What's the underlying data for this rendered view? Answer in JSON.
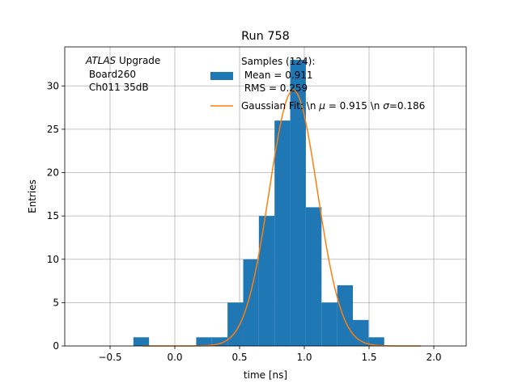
{
  "chart_data": {
    "type": "bar",
    "title": "Run 758",
    "xlabel": "time [ns]",
    "ylabel": "Entries",
    "xlim": [
      -0.85,
      2.25
    ],
    "ylim": [
      0,
      34.5
    ],
    "grid": true,
    "legend_placement": "top-center",
    "xticks": [
      -0.5,
      0.0,
      0.5,
      1.0,
      1.5,
      2.0
    ],
    "xtick_labels": [
      "−0.5",
      "0.0",
      "0.5",
      "1.0",
      "1.5",
      "2.0"
    ],
    "yticks": [
      0,
      5,
      10,
      15,
      20,
      25,
      30
    ],
    "yticks_labels": [
      "0",
      "5",
      "10",
      "15",
      "20",
      "25",
      "30"
    ],
    "bin_width": 0.121,
    "bins": [
      {
        "x0": -0.32,
        "count": 1
      },
      {
        "x0": 0.165,
        "count": 1
      },
      {
        "x0": 0.286,
        "count": 1
      },
      {
        "x0": 0.407,
        "count": 5
      },
      {
        "x0": 0.528,
        "count": 10
      },
      {
        "x0": 0.649,
        "count": 15
      },
      {
        "x0": 0.77,
        "count": 26
      },
      {
        "x0": 0.891,
        "count": 33
      },
      {
        "x0": 1.012,
        "count": 16
      },
      {
        "x0": 1.133,
        "count": 5
      },
      {
        "x0": 1.254,
        "count": 7
      },
      {
        "x0": 1.375,
        "count": 3
      },
      {
        "x0": 1.496,
        "count": 1
      }
    ],
    "fit": {
      "mu": 0.915,
      "sigma": 0.186,
      "amplitude": 29.5
    },
    "colors": {
      "bars": "#1f77b4",
      "fit": "#ff7f0e",
      "grid": "#b0b0b0"
    },
    "annotation": {
      "line1_italic": "ATLAS",
      "line1_rest": " Upgrade",
      "line2": " Board260",
      "line3": " Ch011 35dB"
    },
    "legend": {
      "samples_line1": "Samples (124):",
      "samples_line2": " Mean = 0.911",
      "samples_line3": " RMS = 0.259",
      "fit_label_pre": "Gaussian Fit: \\n ",
      "fit_mu_symbol": "μ",
      "fit_label_mid": " = 0.915 \\n ",
      "fit_sigma_symbol": "σ",
      "fit_label_post": "=0.186"
    }
  }
}
